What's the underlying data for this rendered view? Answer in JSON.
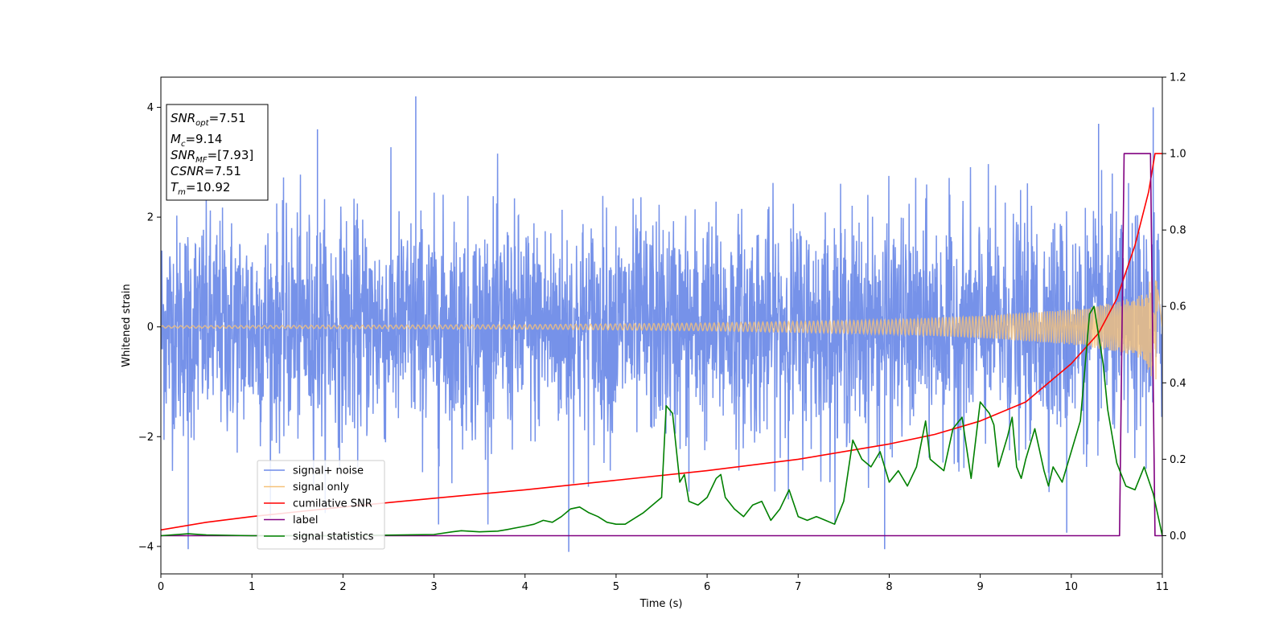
{
  "chart_data": {
    "type": "line",
    "title": "",
    "xlabel": "Time (s)",
    "ylabel": "Whitened strain",
    "xlim": [
      0,
      11
    ],
    "ylim_left": [
      -4.5,
      4.55
    ],
    "ylim_right": [
      -0.1,
      1.2
    ],
    "x_ticks": [
      "0",
      "1",
      "2",
      "3",
      "4",
      "5",
      "6",
      "7",
      "8",
      "9",
      "10",
      "11"
    ],
    "y_ticks_left": [
      "−4",
      "−2",
      "0",
      "2",
      "4"
    ],
    "y_ticks_right": [
      "0.0",
      "0.2",
      "0.4",
      "0.6",
      "0.8",
      "1.0",
      "1.2"
    ],
    "grid": false,
    "legend_position": "lower-left",
    "annotation_box": {
      "snr_opt": "7.51",
      "mc": "9.14",
      "snr_mf": "[7.93]",
      "csnr": "7.51",
      "tm": "10.92"
    },
    "series": [
      {
        "name": "signal+ noise",
        "axis": "left",
        "color": "#6f8ce8",
        "description": "whitened Gaussian noise, amplitude about ±2.5 with spikes to about ±4",
        "noise_amplitude": 1.0,
        "peak": 4.2,
        "trough": -4.1
      },
      {
        "name": "signal only",
        "axis": "left",
        "color": "#f5c27a",
        "description": "chirp waveform growing toward merger",
        "envelope": {
          "x": [
            0,
            4,
            6,
            8,
            9,
            10,
            10.5,
            10.8,
            10.92,
            11
          ],
          "y": [
            0.02,
            0.04,
            0.07,
            0.13,
            0.2,
            0.32,
            0.45,
            0.6,
            1.1,
            0.0
          ]
        }
      },
      {
        "name": "cumilative SNR",
        "axis": "right",
        "color": "#ff0000",
        "x": [
          0,
          0.5,
          1,
          2,
          3,
          4,
          5,
          6,
          7,
          8,
          8.5,
          9,
          9.5,
          10,
          10.3,
          10.5,
          10.7,
          10.85,
          10.92,
          11
        ],
        "y": [
          0.015,
          0.035,
          0.05,
          0.075,
          0.098,
          0.12,
          0.145,
          0.17,
          0.2,
          0.24,
          0.265,
          0.3,
          0.35,
          0.45,
          0.53,
          0.62,
          0.76,
          0.9,
          1.0,
          1.0
        ]
      },
      {
        "name": "label",
        "axis": "right",
        "color": "#800080",
        "x": [
          0,
          10.53,
          10.58,
          10.87,
          10.92,
          11
        ],
        "y": [
          0,
          0,
          1.0,
          1.0,
          0,
          0
        ]
      },
      {
        "name": "signal statistics",
        "axis": "right",
        "color": "#008000",
        "x": [
          0,
          0.3,
          0.5,
          1,
          2,
          3,
          3.2,
          3.3,
          3.5,
          3.7,
          3.8,
          4,
          4.1,
          4.2,
          4.3,
          4.4,
          4.5,
          4.6,
          4.7,
          4.8,
          4.9,
          5.0,
          5.1,
          5.2,
          5.3,
          5.4,
          5.5,
          5.55,
          5.62,
          5.7,
          5.75,
          5.8,
          5.9,
          6.0,
          6.1,
          6.15,
          6.2,
          6.3,
          6.4,
          6.5,
          6.6,
          6.7,
          6.8,
          6.9,
          7.0,
          7.1,
          7.2,
          7.3,
          7.4,
          7.5,
          7.6,
          7.7,
          7.8,
          7.9,
          8.0,
          8.1,
          8.2,
          8.3,
          8.4,
          8.45,
          8.5,
          8.6,
          8.7,
          8.8,
          8.9,
          9.0,
          9.1,
          9.15,
          9.2,
          9.3,
          9.35,
          9.4,
          9.45,
          9.5,
          9.6,
          9.7,
          9.75,
          9.8,
          9.9,
          10.0,
          10.1,
          10.2,
          10.25,
          10.35,
          10.4,
          10.5,
          10.6,
          10.7,
          10.8,
          10.9,
          11.0
        ],
        "y": [
          0.0,
          0.005,
          0.002,
          0.0,
          0.0,
          0.003,
          0.01,
          0.013,
          0.01,
          0.012,
          0.016,
          0.025,
          0.03,
          0.04,
          0.035,
          0.05,
          0.07,
          0.075,
          0.06,
          0.05,
          0.035,
          0.03,
          0.03,
          0.045,
          0.06,
          0.08,
          0.1,
          0.34,
          0.32,
          0.14,
          0.16,
          0.09,
          0.08,
          0.1,
          0.15,
          0.16,
          0.1,
          0.07,
          0.05,
          0.08,
          0.09,
          0.04,
          0.07,
          0.12,
          0.05,
          0.04,
          0.05,
          0.04,
          0.03,
          0.09,
          0.25,
          0.2,
          0.18,
          0.22,
          0.14,
          0.17,
          0.13,
          0.18,
          0.3,
          0.2,
          0.19,
          0.17,
          0.28,
          0.31,
          0.15,
          0.35,
          0.32,
          0.29,
          0.18,
          0.26,
          0.31,
          0.18,
          0.15,
          0.2,
          0.28,
          0.17,
          0.13,
          0.18,
          0.14,
          0.22,
          0.3,
          0.58,
          0.6,
          0.45,
          0.33,
          0.19,
          0.13,
          0.12,
          0.18,
          0.11,
          0.0
        ]
      }
    ]
  }
}
